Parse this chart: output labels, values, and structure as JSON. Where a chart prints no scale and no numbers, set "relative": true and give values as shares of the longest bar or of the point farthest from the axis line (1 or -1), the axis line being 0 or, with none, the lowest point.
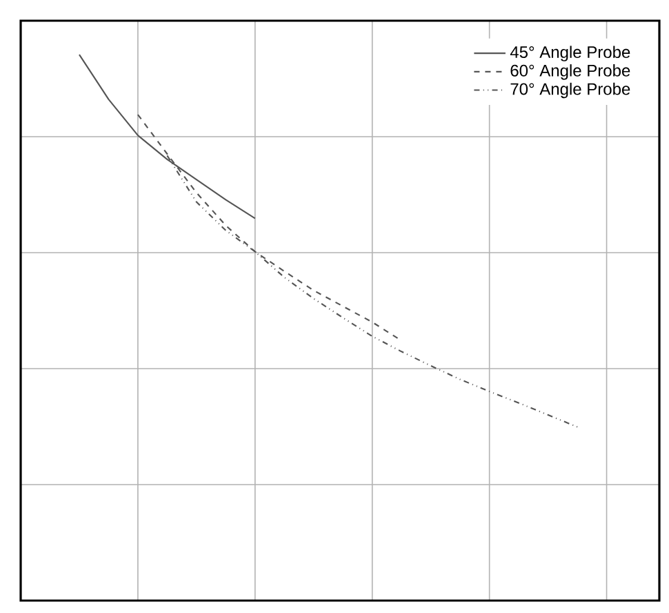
{
  "chart_data": {
    "type": "line",
    "relative": true,
    "grid": true,
    "legend": "top right",
    "marker": "none",
    "categories": [
      null,
      null,
      null,
      null,
      null,
      null,
      null,
      null,
      null,
      null,
      null,
      null,
      null,
      null,
      null,
      null,
      null,
      null
    ],
    "series": [
      {
        "name": "45° Angle Probe",
        "color": "#555555",
        "line_style": "solid",
        "values": [
          1,
          0.918,
          0.852,
          0.808,
          0.771,
          0.734,
          0.7,
          null,
          null,
          null,
          null,
          null,
          null,
          null,
          null,
          null,
          null,
          null
        ]
      },
      {
        "name": "60° Angle Probe",
        "color": "#555555",
        "line_style": "dashed",
        "values": [
          null,
          null,
          0.89,
          0.818,
          0.747,
          0.687,
          0.639,
          0.603,
          0.568,
          0.539,
          0.51,
          0.476,
          null,
          null,
          null,
          null,
          null,
          null
        ]
      },
      {
        "name": "70° Angle Probe",
        "color": "#555555",
        "line_style": "dashdotdot",
        "values": [
          null,
          null,
          null,
          0.815,
          0.73,
          0.678,
          0.639,
          0.592,
          0.553,
          0.518,
          0.484,
          0.456,
          0.43,
          0.405,
          0.383,
          0.362,
          0.34,
          0.318
        ]
      }
    ]
  }
}
